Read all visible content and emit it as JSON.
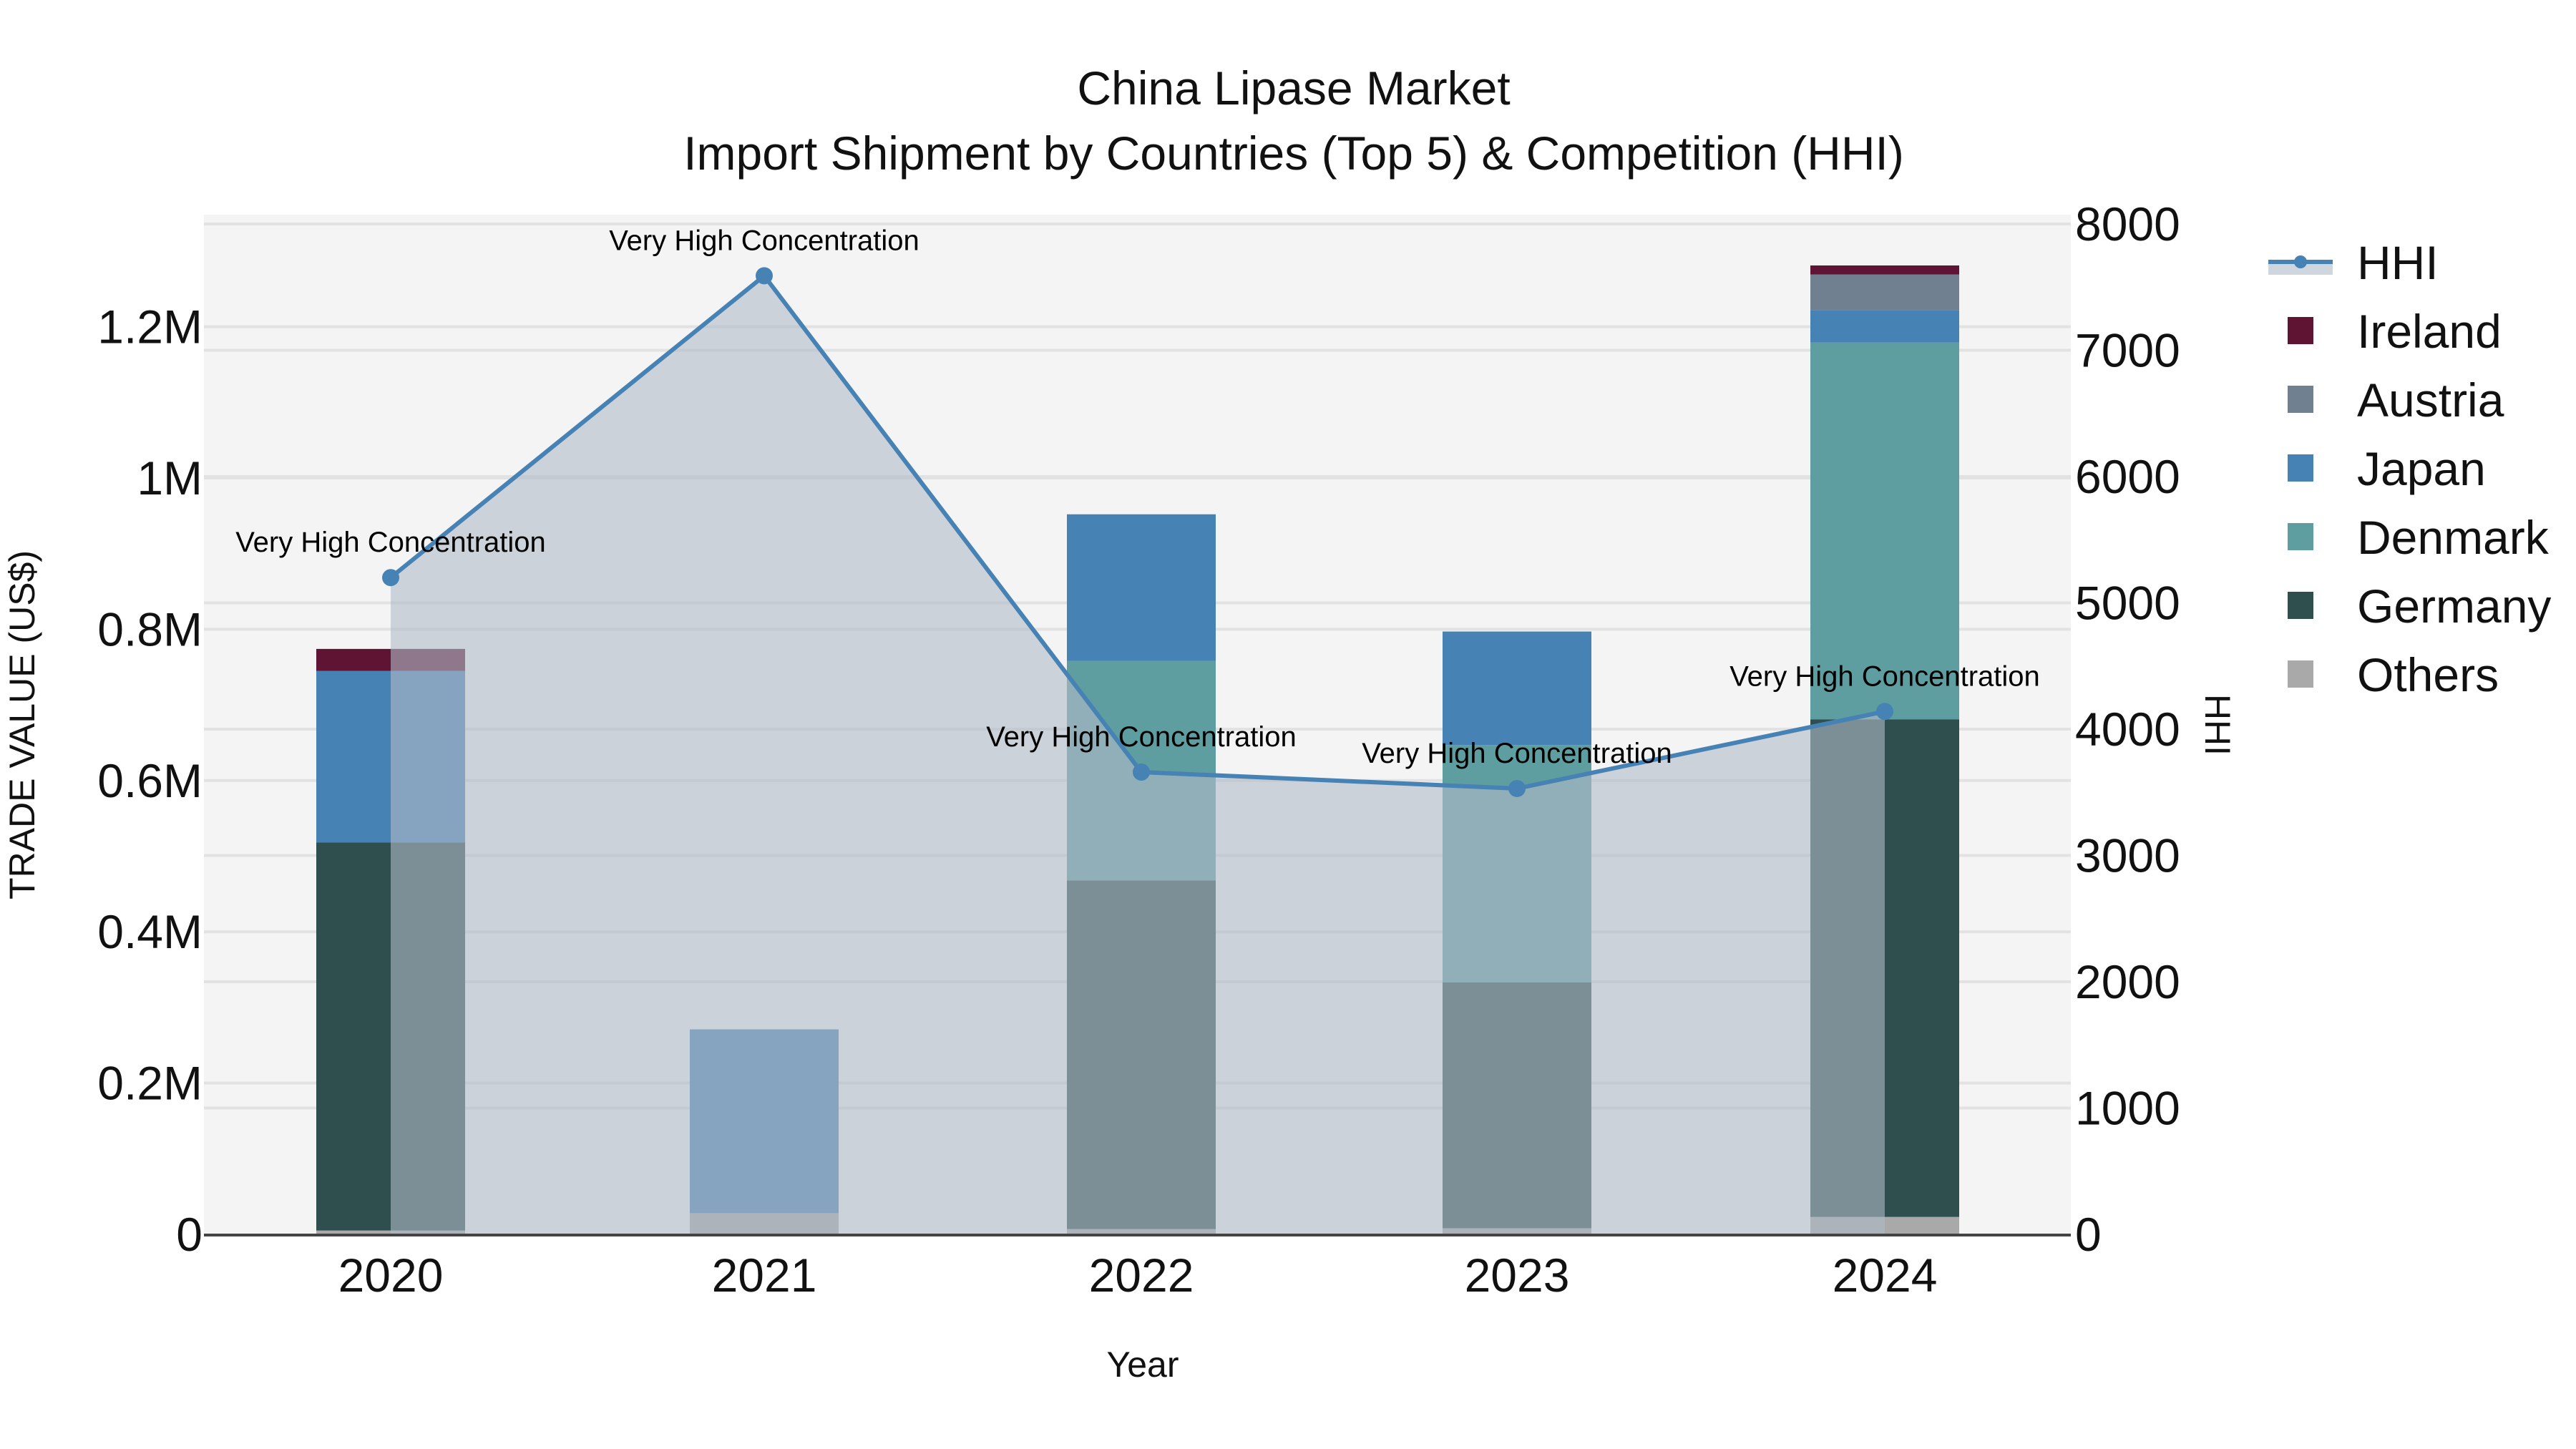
{
  "title": {
    "line1": "China Lipase Market",
    "line2": "Import Shipment by Countries (Top 5) & Competition (HHI)"
  },
  "axes": {
    "x_title": "Year",
    "y_left_title": "TRADE VALUE (US$)",
    "y_right_title": "HHI",
    "y_left_ticks": [
      {
        "value": 0,
        "label": "0"
      },
      {
        "value": 0.2,
        "label": "0.2M"
      },
      {
        "value": 0.4,
        "label": "0.4M"
      },
      {
        "value": 0.6,
        "label": "0.6M"
      },
      {
        "value": 0.8,
        "label": "0.8M"
      },
      {
        "value": 1.0,
        "label": "1M"
      },
      {
        "value": 1.2,
        "label": "1.2M"
      }
    ],
    "y_right_ticks": [
      {
        "value": 0,
        "label": "0"
      },
      {
        "value": 1000,
        "label": "1000"
      },
      {
        "value": 2000,
        "label": "2000"
      },
      {
        "value": 3000,
        "label": "3000"
      },
      {
        "value": 4000,
        "label": "4000"
      },
      {
        "value": 5000,
        "label": "5000"
      },
      {
        "value": 6000,
        "label": "6000"
      },
      {
        "value": 7000,
        "label": "7000"
      },
      {
        "value": 8000,
        "label": "8000"
      }
    ]
  },
  "legend": [
    {
      "name": "HHI",
      "type": "line",
      "color": "#4682B4"
    },
    {
      "name": "Ireland",
      "type": "bar",
      "color": "#601434"
    },
    {
      "name": "Austria",
      "type": "bar",
      "color": "#708090"
    },
    {
      "name": "Japan",
      "type": "bar",
      "color": "#4682B4"
    },
    {
      "name": "Denmark",
      "type": "bar",
      "color": "#5F9EA0"
    },
    {
      "name": "Germany",
      "type": "bar",
      "color": "#2F4F4F"
    },
    {
      "name": "Others",
      "type": "bar",
      "color": "#A9A9A9"
    }
  ],
  "colors": {
    "plot_bg": "#F4F4F4",
    "grid": "#E2E2E2",
    "hhi_fill": "rgba(176,186,200,0.6)",
    "hhi_line": "#4682B4",
    "axis_line": "#444444"
  },
  "chart_data": {
    "type": "bar",
    "title": "China Lipase Market — Import Shipment by Countries (Top 5) & Competition (HHI)",
    "xlabel": "Year",
    "ylabel": "TRADE VALUE (US$)",
    "y2label": "HHI",
    "ylim": [
      0,
      1.34
    ],
    "y_unit": "M US$",
    "y2lim": [
      0,
      8070
    ],
    "grid": true,
    "legend_position": "right",
    "stacked": true,
    "categories": [
      "2020",
      "2021",
      "2022",
      "2023",
      "2024"
    ],
    "series": [
      {
        "name": "Others",
        "color": "#A9A9A9",
        "values": [
          0.005,
          0.028,
          0.007,
          0.008,
          0.023
        ]
      },
      {
        "name": "Germany",
        "color": "#2F4F4F",
        "values": [
          0.513,
          0,
          0.461,
          0.325,
          0.658
        ]
      },
      {
        "name": "Denmark",
        "color": "#5F9EA0",
        "values": [
          0,
          0,
          0.29,
          0.314,
          0.498
        ]
      },
      {
        "name": "Japan",
        "color": "#4682B4",
        "values": [
          0.227,
          0.243,
          0.194,
          0.15,
          0.043
        ]
      },
      {
        "name": "Austria",
        "color": "#708090",
        "values": [
          0,
          0,
          0,
          0,
          0.047
        ]
      },
      {
        "name": "Ireland",
        "color": "#601434",
        "values": [
          0.029,
          0,
          0,
          0,
          0.012
        ]
      }
    ],
    "hhi": {
      "name": "HHI",
      "type": "line+area",
      "values": [
        5200,
        7590,
        3660,
        3530,
        4140
      ],
      "annotations": [
        "Very High Concentration",
        "Very High Concentration",
        "Very High Concentration",
        "Very High Concentration",
        "Very High Concentration"
      ]
    }
  }
}
